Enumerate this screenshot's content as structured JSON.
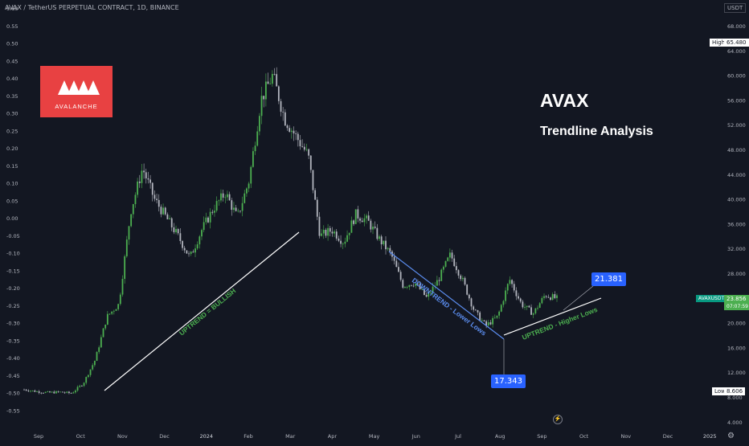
{
  "chart_data": {
    "type": "candlestick",
    "title": "AVAX / TetherUS PERPETUAL CONTRACT, 1D, BINANCE",
    "heading": "AVAX",
    "subheading": "Trendline Analysis",
    "left_axis": {
      "ticks": [
        "0.60",
        "0.55",
        "0.50",
        "0.45",
        "0.40",
        "0.35",
        "0.30",
        "0.25",
        "0.20",
        "0.15",
        "0.10",
        "0.05",
        "0.00",
        "-0.05",
        "-0.10",
        "-0.15",
        "-0.20",
        "-0.25",
        "-0.30",
        "-0.35",
        "-0.40",
        "-0.45",
        "-0.50",
        "-0.55"
      ]
    },
    "right_axis": {
      "unit": "USDT",
      "ticks": [
        "68.000",
        "64.000",
        "60.000",
        "56.000",
        "52.000",
        "48.000",
        "44.000",
        "40.000",
        "36.000",
        "32.000",
        "28.000",
        "24.000",
        "20.000",
        "16.000",
        "12.000",
        "8.000",
        "4.000"
      ]
    },
    "x_axis": {
      "ticks": [
        "Sep",
        "Oct",
        "Nov",
        "Dec",
        "2024",
        "Feb",
        "Mar",
        "Apr",
        "May",
        "Jun",
        "Jul",
        "Aug",
        "Sep",
        "Oct",
        "Nov",
        "Dec",
        "2025"
      ]
    },
    "price_path": [
      {
        "t": "Sep",
        "p": 9.2
      },
      {
        "t": "Sep+10",
        "p": 8.9
      },
      {
        "t": "Oct",
        "p": 8.7
      },
      {
        "t": "Oct+10",
        "p": 8.8
      },
      {
        "t": "Oct+20",
        "p": 8.6
      },
      {
        "t": "Nov",
        "p": 10.2
      },
      {
        "t": "Nov+15",
        "p": 14.0
      },
      {
        "t": "Nov+20",
        "p": 21.0
      },
      {
        "t": "Dec",
        "p": 23.0
      },
      {
        "t": "Dec+10",
        "p": 38.0
      },
      {
        "t": "Dec+20",
        "p": 45.0
      },
      {
        "t": "Dec+25",
        "p": 40.0
      },
      {
        "t": "2024",
        "p": 37.0
      },
      {
        "t": "Jan+10",
        "p": 34.0
      },
      {
        "t": "Jan+20",
        "p": 30.5
      },
      {
        "t": "Feb",
        "p": 35.0
      },
      {
        "t": "Feb+10",
        "p": 38.5
      },
      {
        "t": "Feb+20",
        "p": 41.0
      },
      {
        "t": "Feb+25",
        "p": 37.0
      },
      {
        "t": "Mar",
        "p": 43.0
      },
      {
        "t": "Mar+10",
        "p": 56.0
      },
      {
        "t": "Mar+18",
        "p": 60.0
      },
      {
        "t": "Mar+25",
        "p": 53.0
      },
      {
        "t": "Apr",
        "p": 50.0
      },
      {
        "t": "Apr+8",
        "p": 47.0
      },
      {
        "t": "Apr+13",
        "p": 34.0
      },
      {
        "t": "Apr+20",
        "p": 35.0
      },
      {
        "t": "May",
        "p": 33.0
      },
      {
        "t": "May+10",
        "p": 37.5
      },
      {
        "t": "May+20",
        "p": 36.5
      },
      {
        "t": "Jun",
        "p": 33.5
      },
      {
        "t": "Jun+10",
        "p": 31.0
      },
      {
        "t": "Jun+20",
        "p": 26.0
      },
      {
        "t": "Jul",
        "p": 26.5
      },
      {
        "t": "Jul+5",
        "p": 24.0
      },
      {
        "t": "Jul+15",
        "p": 27.0
      },
      {
        "t": "Jul+20",
        "p": 31.0
      },
      {
        "t": "Jul+25",
        "p": 27.0
      },
      {
        "t": "Aug",
        "p": 22.0
      },
      {
        "t": "Aug+5",
        "p": 19.5
      },
      {
        "t": "Aug+15",
        "p": 21.0
      },
      {
        "t": "Aug+25",
        "p": 27.0
      },
      {
        "t": "Sep",
        "p": 23.0
      },
      {
        "t": "Sep+8",
        "p": 21.5
      },
      {
        "t": "Sep+13",
        "p": 24.5
      },
      {
        "t": "Sep+18",
        "p": 23.9
      }
    ],
    "price_high": "65.480",
    "price_low": "8.606",
    "last_price": {
      "symbol": "AVAXUSDT.P",
      "value": "23.856",
      "countdown": "07:07:59"
    },
    "annotations": [
      {
        "text": "UPTREND = BULLISH",
        "color": "#4caf50"
      },
      {
        "text": "DOWNTREND - Lower Lows",
        "color": "#5b8def"
      },
      {
        "text": "UPTREND - Higher Lows",
        "color": "#4caf50"
      }
    ],
    "callouts": [
      "17.343",
      "21.381"
    ],
    "logo_text": "AVALANCHE",
    "colors": {
      "background": "#131722",
      "up": "#4caf50",
      "down": "#b2b5be",
      "accent": "#2962ff",
      "brand": "#e84142"
    }
  }
}
